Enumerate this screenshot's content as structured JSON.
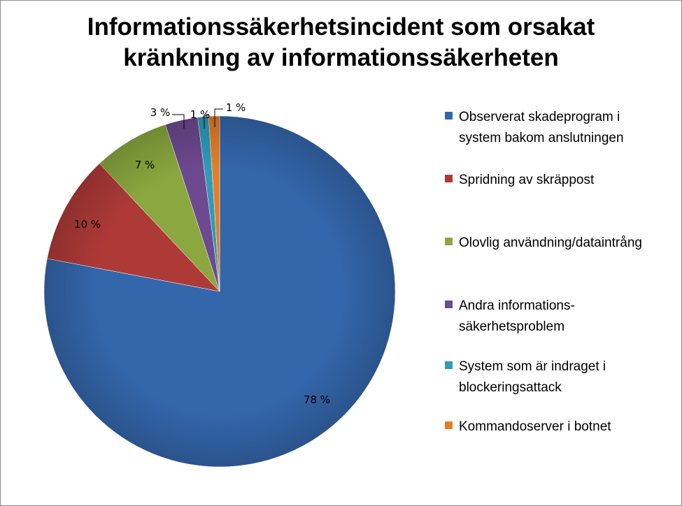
{
  "chart_data": {
    "type": "pie",
    "title_lines": [
      "Informationssäkerhetsincident som orsakat",
      "kränkning av informationssäkerheten"
    ],
    "legend_position": "right",
    "categories": [
      "Observerat skadeprogram i system bakom anslutningen",
      "Spridning av skräppost",
      "Olovlig användning/dataintrång",
      "Andra informations-säkerhetsproblem",
      "System som är indraget i blockeringsattack",
      "Kommandoserver i botnet"
    ],
    "legend_lines": [
      [
        "Observerat skadeprogram i",
        "system bakom anslutningen"
      ],
      [
        "Spridning av skräppost"
      ],
      [
        "Olovlig användning/dataintrång"
      ],
      [
        "Andra informations-",
        "säkerhetsproblem"
      ],
      [
        "System som är indraget i",
        "blockeringsattack"
      ],
      [
        "Kommandoserver i botnet"
      ]
    ],
    "values": [
      78,
      10,
      7,
      3,
      1,
      1
    ],
    "data_labels": [
      "78 %",
      "10 %",
      "7 %",
      "3 %",
      "1 %",
      "1 %"
    ],
    "colors": [
      "#3466AB",
      "#AE3A38",
      "#8AA83F",
      "#6D4990",
      "#2F9BB7",
      "#E57E26"
    ],
    "start_angle": "12 o'clock",
    "direction": "clockwise"
  }
}
